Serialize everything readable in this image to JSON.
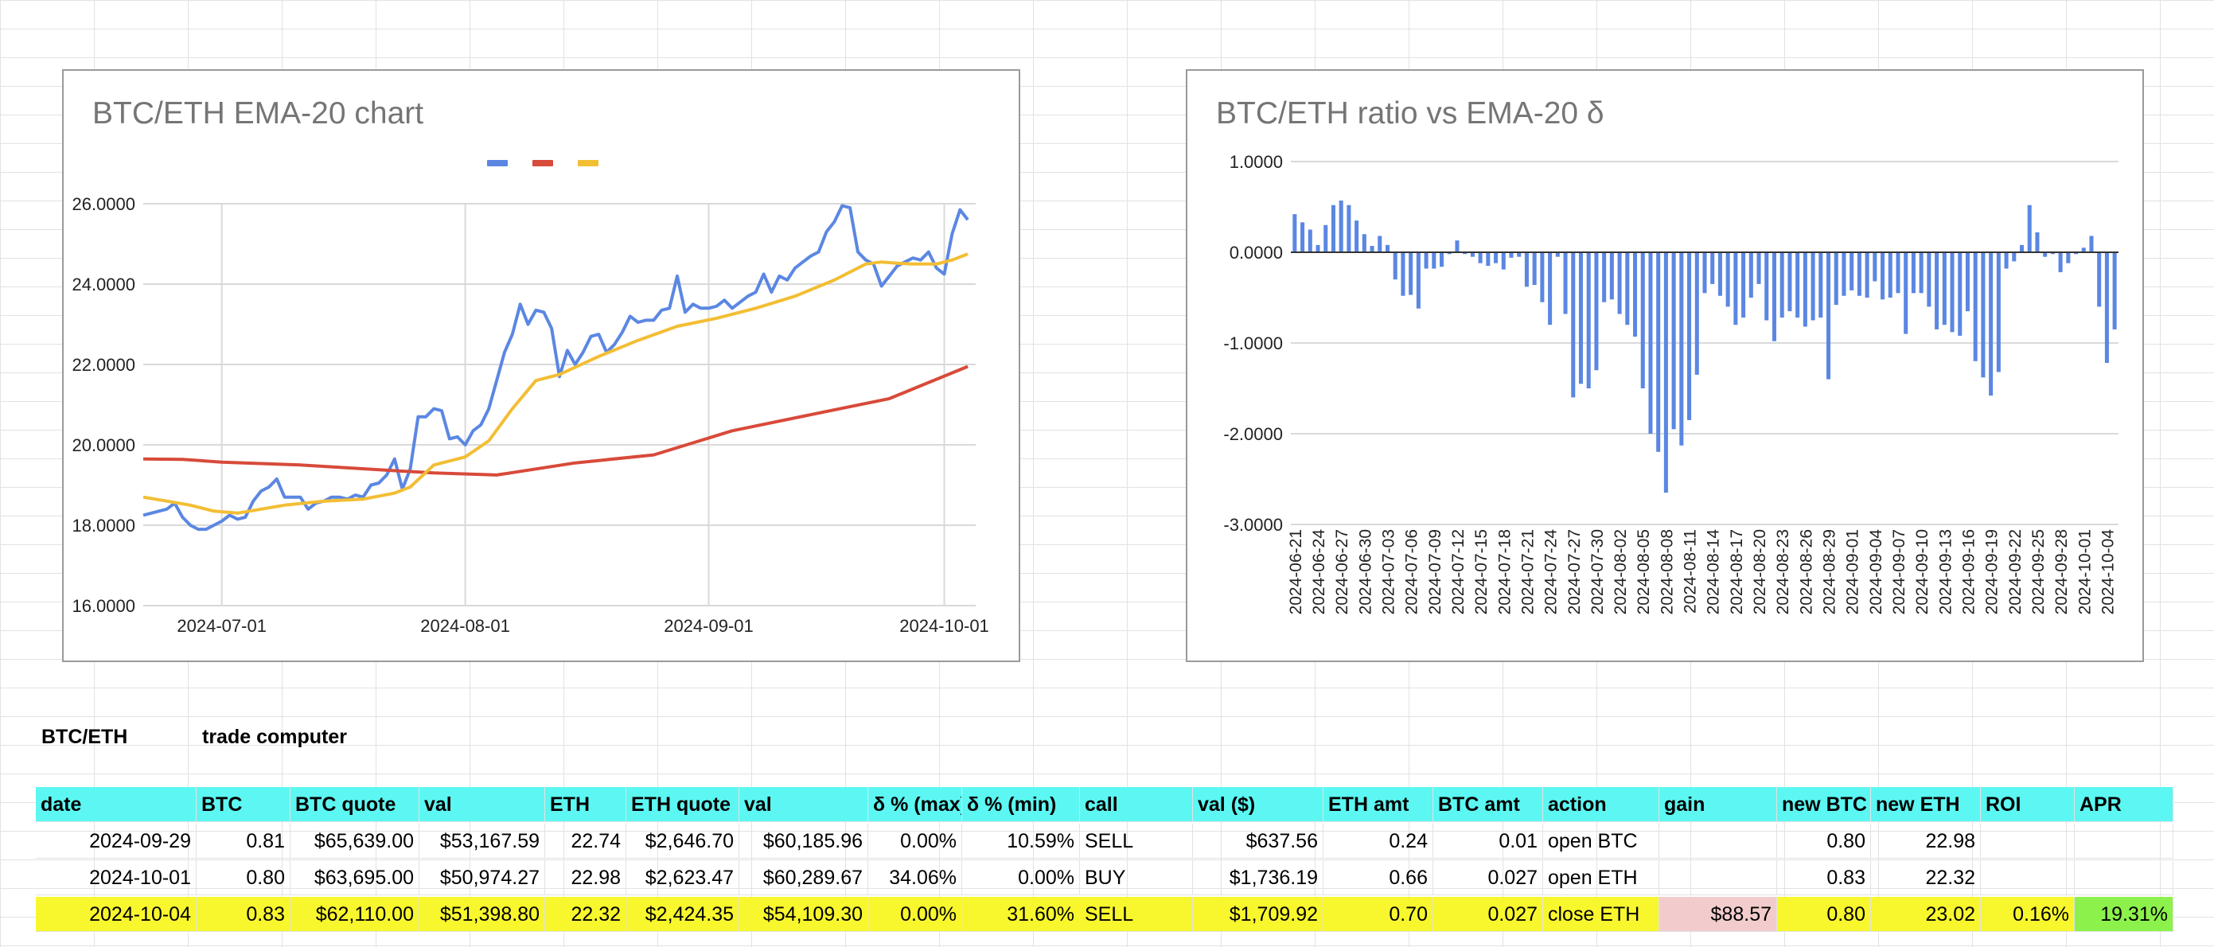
{
  "colors": {
    "cyan": "#5cf7f2",
    "yellow": "#f8f72e",
    "pink": "#f2cccc",
    "green": "#8cf24b",
    "blue": "#5b87e2",
    "red": "#d84a3a",
    "orange": "#f2be34"
  },
  "charts": {
    "ema": {
      "title": "BTC/ETH EMA-20 chart"
    },
    "ratio": {
      "title": "BTC/ETH ratio vs EMA-20 δ"
    }
  },
  "chart_data": [
    {
      "type": "line",
      "title": "BTC/ETH EMA-20 chart",
      "ylim": [
        16,
        26
      ],
      "yticks": [
        "26.0000",
        "24.0000",
        "22.0000",
        "20.0000",
        "18.0000",
        "16.0000"
      ],
      "xlim": [
        "2024-06-21",
        "2024-10-05"
      ],
      "xticks": [
        "2024-07-01",
        "2024-08-01",
        "2024-09-01",
        "2024-10-01"
      ],
      "legend": "top-center",
      "grid": true,
      "series": [
        {
          "color": "#5b87e2",
          "x": [
            "2024-06-21",
            "2024-06-23",
            "2024-06-24",
            "2024-06-25",
            "2024-06-26",
            "2024-06-27",
            "2024-06-28",
            "2024-06-29",
            "2024-06-30",
            "2024-07-01",
            "2024-07-02",
            "2024-07-03",
            "2024-07-04",
            "2024-07-05",
            "2024-07-06",
            "2024-07-07",
            "2024-07-08",
            "2024-07-09",
            "2024-07-10",
            "2024-07-11",
            "2024-07-12",
            "2024-07-13",
            "2024-07-14",
            "2024-07-15",
            "2024-07-16",
            "2024-07-17",
            "2024-07-18",
            "2024-07-19",
            "2024-07-20",
            "2024-07-21",
            "2024-07-22",
            "2024-07-23",
            "2024-07-24",
            "2024-07-25",
            "2024-07-26",
            "2024-07-27",
            "2024-07-28",
            "2024-07-29",
            "2024-07-30",
            "2024-07-31",
            "2024-08-01",
            "2024-08-02",
            "2024-08-03",
            "2024-08-04",
            "2024-08-05",
            "2024-08-06",
            "2024-08-07",
            "2024-08-08",
            "2024-08-09",
            "2024-08-10",
            "2024-08-11",
            "2024-08-12",
            "2024-08-13",
            "2024-08-14",
            "2024-08-15",
            "2024-08-16",
            "2024-08-17",
            "2024-08-18",
            "2024-08-19",
            "2024-08-20",
            "2024-08-21",
            "2024-08-22",
            "2024-08-23",
            "2024-08-24",
            "2024-08-25",
            "2024-08-26",
            "2024-08-27",
            "2024-08-28",
            "2024-08-29",
            "2024-08-30",
            "2024-08-31",
            "2024-09-01",
            "2024-09-02",
            "2024-09-03",
            "2024-09-04",
            "2024-09-05",
            "2024-09-06",
            "2024-09-07",
            "2024-09-08",
            "2024-09-09",
            "2024-09-10",
            "2024-09-11",
            "2024-09-12",
            "2024-09-13",
            "2024-09-14",
            "2024-09-15",
            "2024-09-16",
            "2024-09-17",
            "2024-09-18",
            "2024-09-19",
            "2024-09-20",
            "2024-09-21",
            "2024-09-22",
            "2024-09-23",
            "2024-09-24",
            "2024-09-25",
            "2024-09-26",
            "2024-09-27",
            "2024-09-28",
            "2024-09-29",
            "2024-09-30",
            "2024-10-01",
            "2024-10-02",
            "2024-10-03",
            "2024-10-04"
          ],
          "values": [
            18.25,
            18.35,
            18.4,
            18.55,
            18.2,
            18.0,
            17.9,
            17.9,
            18.0,
            18.1,
            18.25,
            18.15,
            18.2,
            18.6,
            18.85,
            18.95,
            19.15,
            18.7,
            18.7,
            18.7,
            18.4,
            18.55,
            18.6,
            18.7,
            18.7,
            18.65,
            18.75,
            18.7,
            19.0,
            19.05,
            19.25,
            19.65,
            18.9,
            19.4,
            20.7,
            20.7,
            20.9,
            20.85,
            20.15,
            20.2,
            20.0,
            20.35,
            20.5,
            20.9,
            21.6,
            22.3,
            22.75,
            23.5,
            23.0,
            23.35,
            23.3,
            22.9,
            21.7,
            22.35,
            22.0,
            22.3,
            22.7,
            22.75,
            22.3,
            22.5,
            22.8,
            23.2,
            23.05,
            23.1,
            23.1,
            23.35,
            23.4,
            24.2,
            23.3,
            23.5,
            23.4,
            23.4,
            23.45,
            23.6,
            23.4,
            23.55,
            23.7,
            23.8,
            24.25,
            23.8,
            24.2,
            24.1,
            24.4,
            24.55,
            24.7,
            24.8,
            25.3,
            25.55,
            25.95,
            25.9,
            24.8,
            24.6,
            24.5,
            23.95,
            24.2,
            24.45,
            24.55,
            24.65,
            24.6,
            24.8,
            24.4,
            24.25,
            25.25,
            25.85,
            25.6
          ]
        },
        {
          "color": "#d84a3a",
          "x": [
            "2024-06-21",
            "2024-06-26",
            "2024-07-01",
            "2024-07-11",
            "2024-07-21",
            "2024-07-28",
            "2024-08-05",
            "2024-08-15",
            "2024-08-25",
            "2024-09-04",
            "2024-09-14",
            "2024-09-24",
            "2024-10-04"
          ],
          "values": [
            19.65,
            19.64,
            19.57,
            19.5,
            19.38,
            19.3,
            19.25,
            19.55,
            19.75,
            20.35,
            20.75,
            21.15,
            21.95
          ]
        },
        {
          "color": "#f2be34",
          "x": [
            "2024-06-21",
            "2024-06-24",
            "2024-06-27",
            "2024-06-30",
            "2024-07-03",
            "2024-07-06",
            "2024-07-09",
            "2024-07-14",
            "2024-07-19",
            "2024-07-23",
            "2024-07-25",
            "2024-07-28",
            "2024-08-01",
            "2024-08-04",
            "2024-08-07",
            "2024-08-10",
            "2024-08-13",
            "2024-08-18",
            "2024-08-23",
            "2024-08-28",
            "2024-09-02",
            "2024-09-07",
            "2024-09-12",
            "2024-09-17",
            "2024-09-21",
            "2024-09-23",
            "2024-09-25",
            "2024-09-27",
            "2024-09-30",
            "2024-10-02",
            "2024-10-04"
          ],
          "values": [
            18.7,
            18.6,
            18.5,
            18.35,
            18.3,
            18.4,
            18.5,
            18.6,
            18.65,
            18.8,
            18.95,
            19.5,
            19.7,
            20.1,
            20.9,
            21.6,
            21.75,
            22.2,
            22.6,
            22.95,
            23.15,
            23.4,
            23.7,
            24.1,
            24.5,
            24.55,
            24.52,
            24.5,
            24.5,
            24.6,
            24.75
          ]
        }
      ]
    },
    {
      "type": "bar",
      "title": "BTC/ETH ratio vs EMA-20 δ",
      "ylim": [
        -3,
        1
      ],
      "yticks": [
        "1.0000",
        "0.0000",
        "-1.0000",
        "-2.0000",
        "-3.0000"
      ],
      "grid": true,
      "tick_labels": [
        "2024-06-21",
        "2024-06-24",
        "2024-06-27",
        "2024-06-30",
        "2024-07-03",
        "2024-07-06",
        "2024-07-09",
        "2024-07-12",
        "2024-07-15",
        "2024-07-18",
        "2024-07-21",
        "2024-07-24",
        "2024-07-27",
        "2024-07-30",
        "2024-08-02",
        "2024-08-05",
        "2024-08-08",
        "2024-08-11",
        "2024-08-14",
        "2024-08-17",
        "2024-08-20",
        "2024-08-23",
        "2024-08-26",
        "2024-08-29",
        "2024-09-01",
        "2024-09-04",
        "2024-09-07",
        "2024-09-10",
        "2024-09-13",
        "2024-09-16",
        "2024-09-19",
        "2024-09-22",
        "2024-09-25",
        "2024-09-28",
        "2024-10-01",
        "2024-10-04"
      ],
      "series": [
        {
          "color": "#5b87e2",
          "values": [
            0.42,
            0.33,
            0.25,
            0.08,
            0.3,
            0.52,
            0.57,
            0.52,
            0.35,
            0.2,
            0.07,
            0.18,
            0.08,
            -0.3,
            -0.48,
            -0.47,
            -0.62,
            -0.18,
            -0.18,
            -0.16,
            -0.02,
            0.13,
            -0.02,
            -0.05,
            -0.12,
            -0.15,
            -0.12,
            -0.19,
            -0.06,
            -0.05,
            -0.38,
            -0.36,
            -0.55,
            -0.8,
            -0.05,
            -0.68,
            -1.6,
            -1.45,
            -1.5,
            -1.3,
            -0.55,
            -0.52,
            -0.68,
            -0.8,
            -0.93,
            -1.5,
            -2.0,
            -2.2,
            -2.65,
            -1.95,
            -2.13,
            -1.85,
            -1.35,
            -0.45,
            -0.35,
            -0.48,
            -0.6,
            -0.8,
            -0.72,
            -0.5,
            -0.35,
            -0.75,
            -0.98,
            -0.72,
            -0.65,
            -0.72,
            -0.82,
            -0.75,
            -0.72,
            -1.4,
            -0.58,
            -0.48,
            -0.42,
            -0.48,
            -0.5,
            -0.32,
            -0.52,
            -0.5,
            -0.45,
            -0.9,
            -0.45,
            -0.45,
            -0.6,
            -0.85,
            -0.8,
            -0.88,
            -0.92,
            -0.65,
            -1.2,
            -1.38,
            -1.58,
            -1.32,
            -0.18,
            -0.1,
            0.08,
            0.52,
            0.22,
            -0.05,
            -0.02,
            -0.22,
            -0.12,
            -0.02,
            0.05,
            0.18,
            -0.6,
            -1.22,
            -0.85
          ]
        }
      ]
    }
  ],
  "sheet": {
    "label_left": "BTC/ETH",
    "label_right": "trade computer",
    "headers": [
      "date",
      "BTC",
      "BTC quote",
      "val",
      "ETH",
      "ETH quote",
      "val",
      "δ % (max)",
      "δ % (min)",
      "call",
      "val ($)",
      "ETH amt",
      "BTC amt",
      "action",
      "gain",
      "new BTC",
      "new ETH",
      "ROI",
      "APR"
    ],
    "rows": [
      [
        "2024-09-29",
        "0.81",
        "$65,639.00",
        "$53,167.59",
        "22.74",
        "$2,646.70",
        "$60,185.96",
        "0.00%",
        "10.59%",
        "SELL",
        "$637.56",
        "0.24",
        "0.01",
        "open BTC",
        "",
        "0.80",
        "22.98",
        "",
        ""
      ],
      [
        "2024-10-01",
        "0.80",
        "$63,695.00",
        "$50,974.27",
        "22.98",
        "$2,623.47",
        "$60,289.67",
        "34.06%",
        "0.00%",
        "BUY",
        "$1,736.19",
        "0.66",
        "0.027",
        "open ETH",
        "",
        "0.83",
        "22.32",
        "",
        ""
      ],
      [
        "2024-10-04",
        "0.83",
        "$62,110.00",
        "$51,398.80",
        "22.32",
        "$2,424.35",
        "$54,109.30",
        "0.00%",
        "31.60%",
        "SELL",
        "$1,709.92",
        "0.70",
        "0.027",
        "close ETH",
        "$88.57",
        "0.80",
        "23.02",
        "0.16%",
        "19.31%"
      ]
    ]
  }
}
